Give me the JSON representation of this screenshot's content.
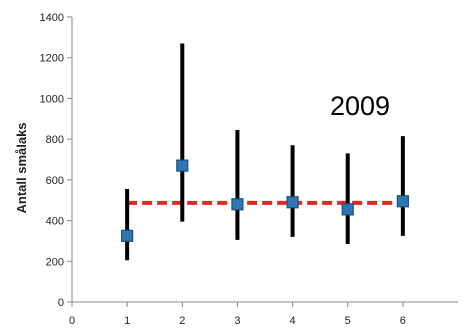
{
  "chart_data": {
    "type": "scatter",
    "ylabel": "Antall smålaks",
    "xlabel": "",
    "title": "",
    "annotation": "2009",
    "xlim": [
      0,
      7
    ],
    "ylim": [
      0,
      1400
    ],
    "x_ticks": [
      "0",
      "1",
      "2",
      "3",
      "4",
      "5",
      "6"
    ],
    "y_ticks": [
      "0",
      "200",
      "400",
      "600",
      "800",
      "1000",
      "1200",
      "1400"
    ],
    "grid": false,
    "points": [
      {
        "x": 1,
        "y": 325,
        "low": 205,
        "high": 555
      },
      {
        "x": 2,
        "y": 670,
        "low": 395,
        "high": 1270
      },
      {
        "x": 3,
        "y": 480,
        "low": 305,
        "high": 845
      },
      {
        "x": 4,
        "y": 490,
        "low": 320,
        "high": 770
      },
      {
        "x": 5,
        "y": 455,
        "low": 285,
        "high": 730
      },
      {
        "x": 6,
        "y": 495,
        "low": 325,
        "high": 815
      }
    ],
    "reference_line": {
      "y": 487,
      "x_from": 1,
      "x_to": 6
    },
    "colors": {
      "marker_fill": "#2e75b6",
      "marker_stroke": "#1f4e79",
      "error_bar": "#000000",
      "reference_line": "#e8281e",
      "axis": "#888888"
    }
  }
}
